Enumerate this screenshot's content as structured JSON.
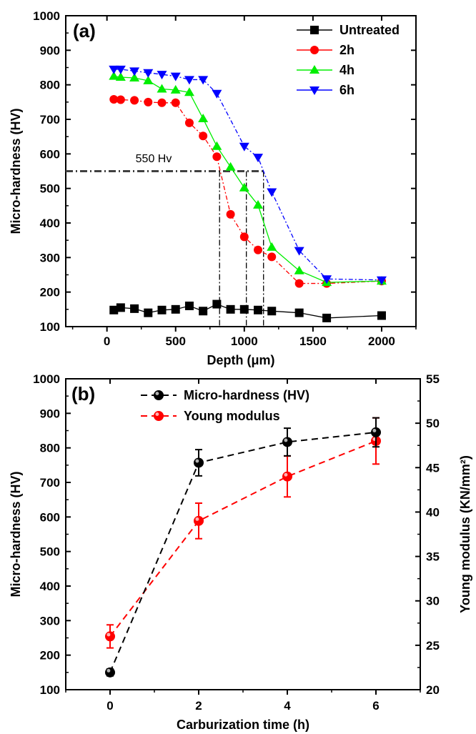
{
  "colors": {
    "untreated": "#000000",
    "h2": "#ff0000",
    "h4": "#00ee00",
    "h6": "#0000ff",
    "threshold": "#404040",
    "hardness_b": "#000000",
    "young_b": "#ff0000"
  },
  "chart_data": [
    {
      "type": "line",
      "panel_label": "(a)",
      "xlabel": "Depth (μm)",
      "ylabel": "Micro-hardness (HV)",
      "xlim": [
        -300,
        2250
      ],
      "ylim": [
        100,
        1000
      ],
      "xticks": [
        0,
        500,
        1000,
        1500,
        2000
      ],
      "yticks": [
        100,
        200,
        300,
        400,
        500,
        600,
        700,
        800,
        900,
        1000
      ],
      "legend_position": "top-right",
      "series": [
        {
          "name": "Untreated",
          "marker": "square",
          "color_key": "untreated",
          "dashed": false,
          "x": [
            50,
            100,
            200,
            300,
            400,
            500,
            600,
            700,
            800,
            900,
            1000,
            1100,
            1200,
            1400,
            1600,
            2000
          ],
          "y": [
            148,
            155,
            152,
            140,
            148,
            150,
            160,
            145,
            165,
            150,
            150,
            148,
            145,
            140,
            125,
            132
          ]
        },
        {
          "name": "2h",
          "marker": "circle",
          "color_key": "h2",
          "dashed": true,
          "x": [
            50,
            100,
            200,
            300,
            400,
            500,
            600,
            700,
            800,
            900,
            1000,
            1100,
            1200,
            1400,
            1600,
            2000
          ],
          "y": [
            758,
            757,
            755,
            750,
            748,
            748,
            690,
            652,
            592,
            425,
            360,
            322,
            302,
            225,
            225,
            232
          ]
        },
        {
          "name": "4h",
          "marker": "triangle-up",
          "color_key": "h4",
          "dashed": false,
          "x": [
            50,
            100,
            200,
            300,
            400,
            500,
            600,
            700,
            800,
            900,
            1000,
            1100,
            1200,
            1400,
            1600,
            2000
          ],
          "y": [
            825,
            822,
            820,
            812,
            788,
            785,
            778,
            702,
            622,
            562,
            502,
            452,
            330,
            262,
            228,
            232
          ]
        },
        {
          "name": "6h",
          "marker": "triangle-down",
          "color_key": "h6",
          "dashed": true,
          "x": [
            50,
            100,
            200,
            300,
            400,
            500,
            600,
            700,
            800,
            1000,
            1100,
            1200,
            1400,
            1600,
            2000
          ],
          "y": [
            845,
            845,
            840,
            835,
            830,
            825,
            815,
            815,
            775,
            622,
            590,
            490,
            320,
            238,
            235
          ]
        }
      ],
      "threshold": {
        "label": "550 Hv",
        "y": 550,
        "crossings_x": [
          820,
          1015,
          1140
        ]
      }
    },
    {
      "type": "line",
      "panel_label": "(b)",
      "xlabel": "Carburization time (h)",
      "ylabel_left": "Micro-hardness (HV)",
      "ylabel_right": "Young modulus (KN/mm²)",
      "xlim": [
        -1,
        7
      ],
      "ylim_left": [
        100,
        1000
      ],
      "ylim_right": [
        20,
        55
      ],
      "xticks": [
        0,
        2,
        4,
        6
      ],
      "yticks_left": [
        100,
        200,
        300,
        400,
        500,
        600,
        700,
        800,
        900,
        1000
      ],
      "yticks_right": [
        20,
        25,
        30,
        35,
        40,
        45,
        50,
        55
      ],
      "legend_position": "top-center",
      "series": [
        {
          "name": "Micro-hardness (HV)",
          "axis": "left",
          "color_key": "hardness_b",
          "x": [
            0,
            2,
            4,
            6
          ],
          "y": [
            150,
            757,
            817,
            845
          ],
          "error": [
            10,
            38,
            40,
            42
          ]
        },
        {
          "name": "Young modulus",
          "axis": "right",
          "color_key": "young_b",
          "x": [
            0,
            2,
            4,
            6
          ],
          "y": [
            26,
            39,
            44,
            48
          ],
          "error": [
            1.3,
            2,
            2.3,
            2.6
          ]
        }
      ]
    }
  ]
}
